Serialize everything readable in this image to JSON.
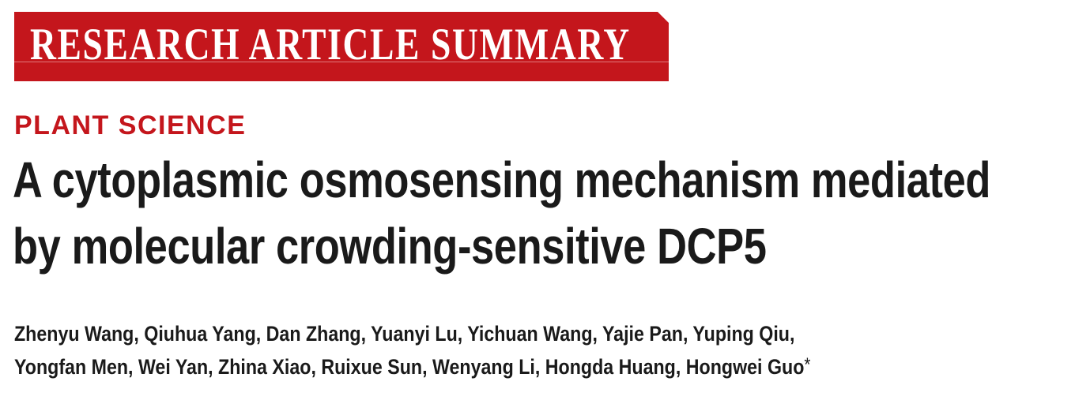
{
  "banner": {
    "label": "RESEARCH ARTICLE SUMMARY",
    "color": "#c4161c"
  },
  "section": {
    "label": "PLANT SCIENCE",
    "color": "#c4161c"
  },
  "title": {
    "line1": "A cytoplasmic osmosensing mechanism mediated",
    "line2": "by molecular crowding-sensitive DCP5"
  },
  "authors": {
    "line1": "Zhenyu Wang, Qiuhua Yang, Dan Zhang, Yuanyi Lu, Yichuan Wang, Yajie Pan, Yuping Qiu,",
    "line2": "Yongfan Men, Wei Yan, Zhina Xiao, Ruixue Sun, Wenyang Li, Hongda Huang, Hongwei Guo",
    "corresponding_marker": "*"
  }
}
